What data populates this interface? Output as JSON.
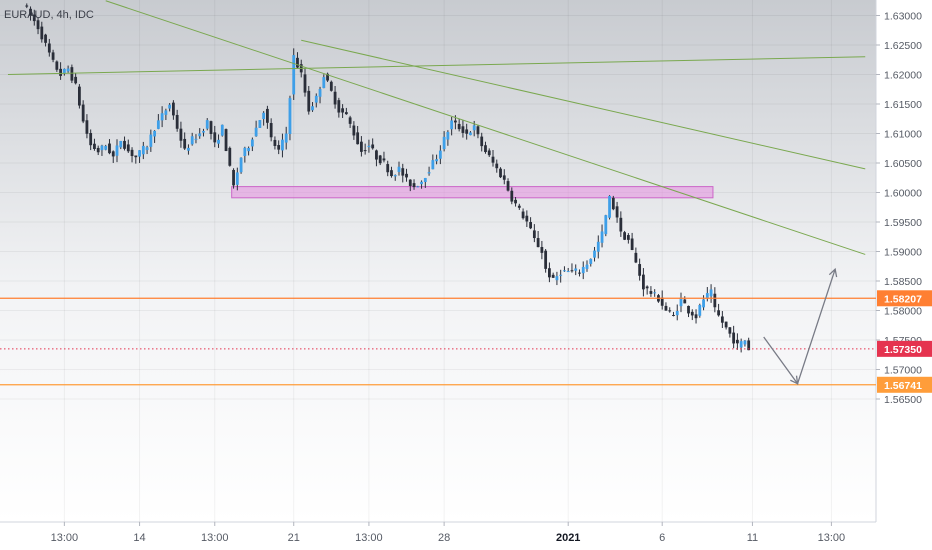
{
  "chart_data": {
    "type": "candlestick",
    "title": "EURAUD, 4h, IDC",
    "y_range": [
      1.562,
      1.632
    ],
    "y_ticks": [
      "1.63000",
      "1.62500",
      "1.62000",
      "1.61500",
      "1.61000",
      "1.60500",
      "1.60000",
      "1.59500",
      "1.59000",
      "1.58500",
      "1.58000",
      "1.57500",
      "1.57000",
      "1.56500"
    ],
    "y_tick_values": [
      1.63,
      1.625,
      1.62,
      1.615,
      1.61,
      1.605,
      1.6,
      1.595,
      1.59,
      1.585,
      1.58,
      1.575,
      1.57,
      1.565
    ],
    "x_ticks": [
      {
        "label": "13:00",
        "bar": 11,
        "bold": false
      },
      {
        "label": "14",
        "bar": 31,
        "bold": false
      },
      {
        "label": "13:00",
        "bar": 51,
        "bold": false
      },
      {
        "label": "21",
        "bar": 72,
        "bold": false
      },
      {
        "label": "13:00",
        "bar": 92,
        "bold": false
      },
      {
        "label": "28",
        "bar": 112,
        "bold": false
      },
      {
        "label": "2021",
        "bar": 145,
        "bold": true
      },
      {
        "label": "6",
        "bar": 170,
        "bold": false
      },
      {
        "label": "11",
        "bar": 194,
        "bold": false
      },
      {
        "label": "13:00",
        "bar": 215,
        "bold": false
      }
    ],
    "close_path": [
      [
        0,
        1.632
      ],
      [
        4,
        1.628
      ],
      [
        6,
        1.625
      ],
      [
        8,
        1.622
      ],
      [
        10,
        1.62
      ],
      [
        12,
        1.621
      ],
      [
        14,
        1.618
      ],
      [
        16,
        1.612
      ],
      [
        18,
        1.608
      ],
      [
        20,
        1.607
      ],
      [
        22,
        1.608
      ],
      [
        24,
        1.606
      ],
      [
        26,
        1.609
      ],
      [
        28,
        1.607
      ],
      [
        30,
        1.606
      ],
      [
        33,
        1.608
      ],
      [
        35,
        1.611
      ],
      [
        37,
        1.613
      ],
      [
        39,
        1.615
      ],
      [
        41,
        1.611
      ],
      [
        43,
        1.607
      ],
      [
        45,
        1.609
      ],
      [
        47,
        1.61
      ],
      [
        49,
        1.612
      ],
      [
        51,
        1.608
      ],
      [
        53,
        1.611
      ],
      [
        55,
        1.604
      ],
      [
        56,
        1.601
      ],
      [
        58,
        1.606
      ],
      [
        60,
        1.608
      ],
      [
        62,
        1.611
      ],
      [
        64,
        1.614
      ],
      [
        66,
        1.609
      ],
      [
        68,
        1.607
      ],
      [
        70,
        1.61
      ],
      [
        72,
        1.623
      ],
      [
        74,
        1.62
      ],
      [
        76,
        1.614
      ],
      [
        78,
        1.616
      ],
      [
        80,
        1.62
      ],
      [
        82,
        1.617
      ],
      [
        84,
        1.614
      ],
      [
        86,
        1.613
      ],
      [
        88,
        1.61
      ],
      [
        90,
        1.607
      ],
      [
        92,
        1.608
      ],
      [
        94,
        1.606
      ],
      [
        96,
        1.605
      ],
      [
        98,
        1.603
      ],
      [
        100,
        1.604
      ],
      [
        102,
        1.602
      ],
      [
        104,
        1.601
      ],
      [
        106,
        1.602
      ],
      [
        108,
        1.604
      ],
      [
        110,
        1.606
      ],
      [
        112,
        1.609
      ],
      [
        114,
        1.612
      ],
      [
        116,
        1.611
      ],
      [
        118,
        1.61
      ],
      [
        120,
        1.611
      ],
      [
        122,
        1.608
      ],
      [
        124,
        1.606
      ],
      [
        126,
        1.604
      ],
      [
        128,
        1.602
      ],
      [
        130,
        1.599
      ],
      [
        132,
        1.597
      ],
      [
        134,
        1.595
      ],
      [
        136,
        1.592
      ],
      [
        138,
        1.59
      ],
      [
        139,
        1.587
      ],
      [
        141,
        1.585
      ],
      [
        143,
        1.5866
      ],
      [
        148,
        1.5866
      ],
      [
        150,
        1.588
      ],
      [
        152,
        1.59
      ],
      [
        154,
        1.593
      ],
      [
        156,
        1.599
      ],
      [
        158,
        1.596
      ],
      [
        159,
        1.593
      ],
      [
        161,
        1.592
      ],
      [
        163,
        1.588
      ],
      [
        165,
        1.584
      ],
      [
        167,
        1.583
      ],
      [
        169,
        1.582
      ],
      [
        171,
        1.58
      ],
      [
        173,
        1.579
      ],
      [
        175,
        1.582
      ],
      [
        177,
        1.58
      ],
      [
        179,
        1.579
      ],
      [
        181,
        1.582
      ],
      [
        183,
        1.583
      ],
      [
        184,
        1.58
      ],
      [
        186,
        1.578
      ],
      [
        188,
        1.576
      ],
      [
        190,
        1.574
      ],
      [
        192,
        1.575
      ],
      [
        193,
        1.5735
      ]
    ],
    "horizontal_levels": [
      {
        "value": 1.58207,
        "label": "1.58207",
        "color": "#ff7f32"
      },
      {
        "value": 1.5735,
        "label": "1.57350",
        "color": "#e5334f",
        "dotted": true
      },
      {
        "value": 1.56741,
        "label": "1.56741",
        "color": "#ff9d3a"
      }
    ],
    "zone": {
      "x0": 55.5,
      "x1": 183.5,
      "y0": 1.601,
      "y1": 1.5991,
      "color": "#e58ee0"
    },
    "trendlines": [
      {
        "x0": 22,
        "y0": 1.6325,
        "x1": 224,
        "y1": 1.5895
      },
      {
        "x0": 74,
        "y0": 1.6258,
        "x1": 224,
        "y1": 1.604
      },
      {
        "x0": -4,
        "y0": 1.62,
        "x1": 224,
        "y1": 1.623
      }
    ],
    "projection": [
      [
        197,
        1.5755
      ],
      [
        206,
        1.5676
      ],
      [
        216,
        1.587
      ]
    ],
    "colors": {
      "up": "#3e9fe8",
      "down": "#2a2e39",
      "trend": "#7aa84f",
      "projection": "#787b86"
    }
  }
}
